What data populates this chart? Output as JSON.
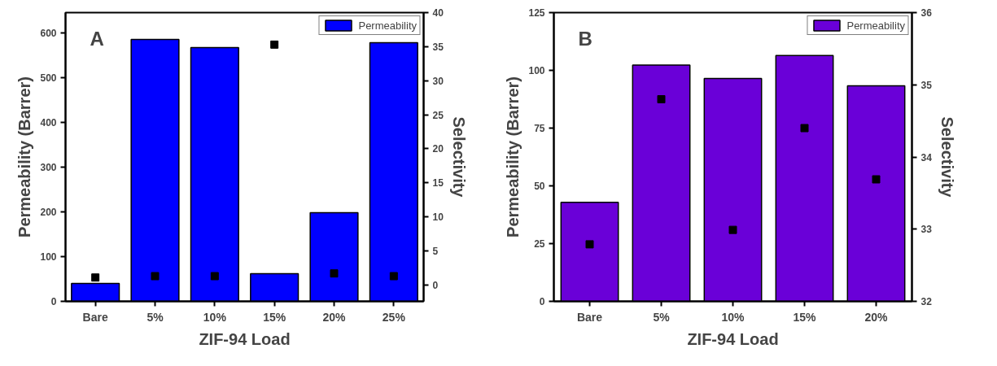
{
  "chart_data": [
    {
      "type": "bar",
      "categories": [
        "Bare",
        "5%",
        "10%",
        "15%",
        "20%",
        "25%"
      ],
      "xlabel": "ZIF-94 Load",
      "ylabel": "Permeability (Barrer)",
      "y2label": "Selectivity",
      "annotations": [
        "A"
      ],
      "series": [
        {
          "name": "Permeability",
          "color": "#0000ff",
          "values": [
            40,
            585,
            567,
            62,
            198,
            578
          ]
        },
        {
          "type": "scatter",
          "axis": "y2",
          "color": "#000000",
          "values": [
            1.1,
            1.3,
            1.3,
            35.3,
            1.7,
            1.3
          ]
        }
      ],
      "ylim": [
        0,
        645
      ],
      "yticks": [
        0,
        100,
        200,
        300,
        400,
        500,
        600
      ],
      "y2lim": [
        -2.4,
        40
      ],
      "y2ticks": [
        0,
        5,
        10,
        15,
        20,
        25,
        30,
        35,
        40
      ],
      "legend": "top right",
      "marker": "square",
      "grid": false
    },
    {
      "type": "bar",
      "categories": [
        "Bare",
        "5%",
        "10%",
        "15%",
        "20%"
      ],
      "xlabel": "ZIF-94 Load",
      "ylabel": "Permeability (Barrer)",
      "y2label": "Selectivity",
      "annotations": [
        "B"
      ],
      "series": [
        {
          "name": "Permeability",
          "color": "#6a00d8",
          "values": [
            42.9,
            102.3,
            96.5,
            106.4,
            93.3
          ]
        },
        {
          "type": "scatter",
          "axis": "y2",
          "color": "#000000",
          "values": [
            32.79,
            34.8,
            32.99,
            34.4,
            33.69
          ]
        }
      ],
      "ylim": [
        0,
        125
      ],
      "yticks": [
        0,
        25,
        50,
        75,
        100,
        125
      ],
      "y2lim": [
        32,
        36
      ],
      "y2ticks": [
        32,
        33,
        34,
        35,
        36
      ],
      "legend": "top right",
      "marker": "square",
      "grid": false
    }
  ]
}
